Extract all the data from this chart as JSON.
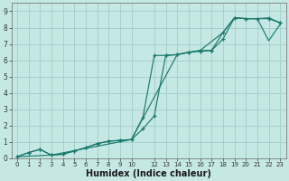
{
  "xlabel": "Humidex (Indice chaleur)",
  "bg_color": "#c5e8e4",
  "grid_color": "#a2cdc9",
  "line_color": "#1a7a6e",
  "xlim": [
    -0.5,
    23.5
  ],
  "ylim": [
    0,
    9.5
  ],
  "line1_x": [
    0,
    1,
    2,
    3,
    4,
    5,
    6,
    7,
    8,
    9,
    10,
    11,
    12,
    13,
    14,
    15,
    16,
    17,
    18,
    19,
    20,
    21,
    22,
    23
  ],
  "line1_y": [
    0.1,
    0.35,
    0.55,
    0.2,
    0.25,
    0.45,
    0.65,
    0.9,
    1.05,
    1.1,
    1.15,
    1.8,
    2.6,
    6.3,
    6.35,
    6.5,
    6.6,
    6.6,
    7.3,
    8.6,
    8.55,
    8.55,
    8.6,
    8.3
  ],
  "line2_x": [
    0,
    1,
    2,
    3,
    4,
    5,
    6,
    7,
    8,
    9,
    10,
    11,
    12,
    13,
    14,
    15,
    16,
    17,
    18,
    19,
    20,
    21,
    22,
    23
  ],
  "line2_y": [
    0.1,
    0.35,
    0.55,
    0.2,
    0.25,
    0.45,
    0.65,
    0.9,
    1.05,
    1.1,
    1.15,
    2.5,
    6.3,
    6.3,
    6.35,
    6.5,
    6.55,
    6.6,
    7.7,
    8.6,
    8.55,
    8.55,
    8.55,
    8.3
  ],
  "line3_x": [
    0,
    3,
    10,
    14,
    16,
    18,
    19,
    20,
    21,
    22,
    23
  ],
  "line3_y": [
    0.1,
    0.2,
    1.15,
    6.35,
    6.6,
    7.7,
    8.6,
    8.55,
    8.55,
    7.2,
    8.2
  ]
}
